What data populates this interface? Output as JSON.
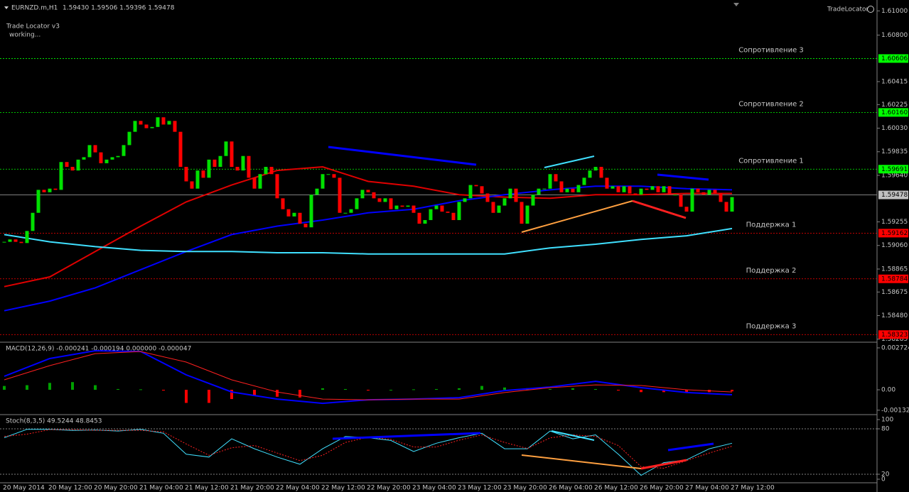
{
  "header": {
    "symbol": "EURNZD.m,H1",
    "ohlc": "1.59430 1.59506 1.59396 1.59478"
  },
  "indicator": {
    "name": "Trade Locator v3",
    "status": "working..."
  },
  "badge": "TradeLocator",
  "price_chart": {
    "ylim": [
      1.5826,
      1.6109
    ],
    "yticks": [
      {
        "value": 1.61,
        "label": "1.61000"
      },
      {
        "value": 1.608,
        "label": "1.60800"
      },
      {
        "value": 1.60415,
        "label": "1.60415"
      },
      {
        "value": 1.60225,
        "label": "1.60225"
      },
      {
        "value": 1.6003,
        "label": "1.60030"
      },
      {
        "value": 1.59835,
        "label": "1.59835"
      },
      {
        "value": 1.5964,
        "label": "1.59640"
      },
      {
        "value": 1.59255,
        "label": "1.59255"
      },
      {
        "value": 1.5906,
        "label": "1.59060"
      },
      {
        "value": 1.58865,
        "label": "1.58865"
      },
      {
        "value": 1.58675,
        "label": "1.58675"
      },
      {
        "value": 1.5848,
        "label": "1.58480"
      },
      {
        "value": 1.58285,
        "label": "1.58285"
      }
    ],
    "up_color": "#00e000",
    "down_color": "#ff0000",
    "closes": [
      1.5909,
      1.5911,
      1.5909,
      1.5908,
      1.5918,
      1.5933,
      1.5952,
      1.595,
      1.5953,
      1.5952,
      1.5975,
      1.5971,
      1.5968,
      1.5977,
      1.5979,
      1.5989,
      1.5983,
      1.5974,
      1.5977,
      1.5979,
      1.598,
      1.5989,
      1.6,
      1.6009,
      1.6006,
      1.6003,
      1.6004,
      1.6012,
      1.6006,
      1.6009,
      1.6,
      1.5971,
      1.5959,
      1.5953,
      1.5968,
      1.5962,
      1.5977,
      1.5971,
      1.598,
      1.5992,
      1.5971,
      1.5968,
      1.598,
      1.5962,
      1.5953,
      1.5965,
      1.5971,
      1.5965,
      1.5945,
      1.5936,
      1.593,
      1.5933,
      1.5924,
      1.5921,
      1.5948,
      1.5953,
      1.5965,
      1.5965,
      1.5962,
      1.5933,
      1.5933,
      1.5936,
      1.5945,
      1.5952,
      1.595,
      1.5945,
      1.5942,
      1.5945,
      1.5936,
      1.5939,
      1.5938,
      1.5939,
      1.5933,
      1.5924,
      1.5927,
      1.5936,
      1.5939,
      1.5934,
      1.5933,
      1.5927,
      1.5942,
      1.5945,
      1.5956,
      1.5955,
      1.5949,
      1.5942,
      1.5933,
      1.5939,
      1.5945,
      1.5953,
      1.5942,
      1.5924,
      1.5939,
      1.5948,
      1.5953,
      1.5953,
      1.5965,
      1.5959,
      1.595,
      1.5953,
      1.595,
      1.5956,
      1.5962,
      1.5968,
      1.5971,
      1.5962,
      1.5953,
      1.5955,
      1.595,
      1.5955,
      1.5949,
      1.5948,
      1.5953,
      1.5952,
      1.5955,
      1.595,
      1.5955,
      1.5948,
      1.5948,
      1.5938,
      1.5934,
      1.5953,
      1.595,
      1.5948,
      1.5952,
      1.5949,
      1.5942,
      1.5934,
      1.5946
    ],
    "moving_averages": [
      {
        "color": "#e00000",
        "values": [
          1.5872,
          1.588,
          1.5901,
          1.5922,
          1.5942,
          1.5956,
          1.5968,
          1.5971,
          1.5959,
          1.5955,
          1.5948,
          1.5946,
          1.5945,
          1.5948,
          1.5948,
          1.5949,
          1.5949
        ]
      },
      {
        "color": "#0000ff",
        "values": [
          1.5852,
          1.586,
          1.5871,
          1.5886,
          1.5901,
          1.5915,
          1.5922,
          1.5927,
          1.5933,
          1.5936,
          1.5943,
          1.5948,
          1.5952,
          1.5955,
          1.5955,
          1.5953,
          1.5952
        ]
      },
      {
        "color": "#40e0ff",
        "values": [
          1.5915,
          1.5909,
          1.5905,
          1.5902,
          1.5901,
          1.5901,
          1.59,
          1.59,
          1.5899,
          1.5899,
          1.5899,
          1.5899,
          1.5904,
          1.5907,
          1.5911,
          1.5914,
          1.592
        ]
      }
    ],
    "levels": [
      {
        "value": 1.60606,
        "label": "1.60606",
        "name": "Сопротивление 3",
        "color": "#00ff00"
      },
      {
        "value": 1.6016,
        "label": "1.60160",
        "name": "Сопротивление 2",
        "color": "#00ff00"
      },
      {
        "value": 1.59691,
        "label": "1.59691",
        "name": "Сопротивление 1",
        "color": "#00ff00"
      },
      {
        "value": 1.59162,
        "label": "1.59162",
        "name": "Поддержка 1",
        "color": "#ff0000"
      },
      {
        "value": 1.58784,
        "label": "1.58784",
        "name": "Поддержка 2",
        "color": "#ff0000"
      },
      {
        "value": 1.58323,
        "label": "1.58323",
        "name": "Поддержка 3",
        "color": "#ff0000"
      }
    ],
    "current": {
      "value": 1.59478,
      "label": "1.59478"
    }
  },
  "x_labels": [
    "20 May 2014",
    "20 May 12:00",
    "20 May 20:00",
    "21 May 04:00",
    "21 May 12:00",
    "21 May 20:00",
    "22 May 04:00",
    "22 May 12:00",
    "22 May 20:00",
    "23 May 04:00",
    "23 May 12:00",
    "23 May 20:00",
    "26 May 04:00",
    "26 May 12:00",
    "26 May 20:00",
    "27 May 04:00",
    "27 May 12:00"
  ],
  "macd": {
    "title": "MACD(12,26,9) -0.000241 -0.000194 0.000000 -0.000047",
    "ylim": [
      -0.00152,
      0.003
    ],
    "yticks": [
      {
        "value": 0.002724,
        "label": "0.002724"
      },
      {
        "value": 0,
        "label": "0.00"
      },
      {
        "value": -0.001325,
        "label": "-0.001325"
      }
    ],
    "histogram": [
      0.00025,
      0.0003,
      0.00045,
      0.0005,
      0.0003,
      5e-05,
      3e-05,
      -5e-05,
      -0.00085,
      -0.00085,
      -0.0006,
      -0.0004,
      -0.00045,
      -0.0005,
      0.0001,
      5e-05,
      -5e-05,
      0,
      3e-05,
      5e-05,
      0.0001,
      0.00025,
      0.00015,
      0.0001,
      5e-05,
      0.0001,
      5e-05,
      -5e-05,
      -0.00015,
      -0.00015,
      -0.0002,
      -0.00015,
      -0.0001
    ],
    "main": [
      0.00088,
      0.00203,
      0.00254,
      0.00249,
      0.00097,
      -0.00014,
      -0.0006,
      -0.00088,
      -0.00065,
      -0.0006,
      -0.00051,
      -5e-05,
      0.00018,
      0.00055,
      0.00014,
      -0.00018,
      -0.00032
    ],
    "signal": [
      0.00065,
      0.00157,
      0.00235,
      0.00249,
      0.0018,
      0.00065,
      -0.00014,
      -0.0006,
      -0.00065,
      -0.0006,
      -0.0006,
      -0.00018,
      0.00014,
      0.00032,
      0.00028,
      0,
      -0.00014
    ]
  },
  "stoch": {
    "title": "Stoch(8,3,5) 49.5244 48.8453",
    "yticks": [
      100,
      80,
      20,
      0
    ],
    "levels": [
      80,
      20
    ],
    "main": [
      68.3,
      79.3,
      79.3,
      77.8,
      78.5,
      77.1,
      79.3,
      74.1,
      46.4,
      42.7,
      66.8,
      53.7,
      42.7,
      33.2,
      53.7,
      69.8,
      68.3,
      64.6,
      50.0,
      61.0,
      68.3,
      74.1,
      53.7,
      53.7,
      77.1,
      66.8,
      72.0,
      46.4,
      18.6,
      35.4,
      39.0,
      53.7,
      61.0
    ],
    "signal": [
      70,
      73,
      79,
      79,
      78,
      78,
      78,
      76,
      60,
      45,
      55,
      58,
      48,
      38,
      45,
      62,
      69,
      66,
      56,
      56,
      65,
      72,
      62,
      54,
      68,
      72,
      70,
      58,
      30,
      28,
      38,
      48,
      57
    ]
  }
}
